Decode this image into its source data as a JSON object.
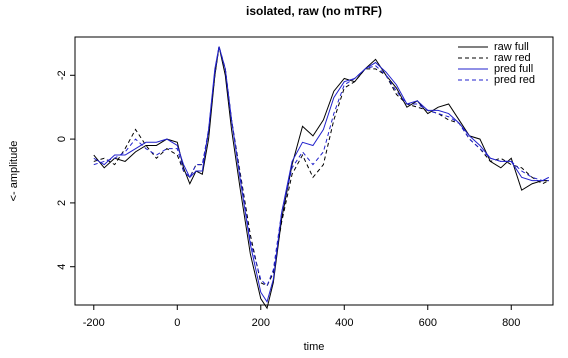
{
  "chart_data": {
    "type": "line",
    "title": "isolated, raw (no mTRF)",
    "x_label": "time",
    "y_label": "<- amplitude",
    "x": [
      -200,
      -175,
      -150,
      -125,
      -100,
      -75,
      -50,
      -25,
      0,
      15,
      30,
      45,
      60,
      75,
      90,
      100,
      115,
      130,
      150,
      175,
      200,
      215,
      230,
      250,
      275,
      300,
      325,
      350,
      375,
      400,
      425,
      450,
      475,
      500,
      525,
      550,
      575,
      600,
      625,
      650,
      675,
      700,
      725,
      750,
      775,
      800,
      825,
      850,
      875,
      890
    ],
    "series": [
      {
        "name": "raw full",
        "color": "#000000",
        "dash": false,
        "values": [
          0.5,
          0.9,
          0.6,
          0.7,
          0.4,
          0.2,
          0.2,
          0.0,
          0.1,
          0.9,
          1.4,
          1.0,
          1.1,
          0.0,
          -2.0,
          -2.9,
          -2.0,
          -0.3,
          1.5,
          3.6,
          5.0,
          5.3,
          4.5,
          2.5,
          0.8,
          -0.4,
          -0.1,
          -0.6,
          -1.5,
          -1.9,
          -1.8,
          -2.2,
          -2.5,
          -2.0,
          -1.6,
          -1.0,
          -1.2,
          -0.8,
          -1.0,
          -1.1,
          -0.6,
          -0.1,
          0.0,
          0.7,
          0.9,
          0.6,
          1.6,
          1.4,
          1.3,
          1.3
        ]
      },
      {
        "name": "raw red",
        "color": "#000000",
        "dash": true,
        "values": [
          0.7,
          0.6,
          0.8,
          0.3,
          -0.3,
          0.2,
          0.6,
          0.3,
          0.5,
          1.0,
          1.2,
          0.8,
          0.8,
          -0.2,
          -2.0,
          -2.9,
          -2.2,
          -0.6,
          1.0,
          3.0,
          4.5,
          4.6,
          4.2,
          2.6,
          1.1,
          0.5,
          1.2,
          0.8,
          -0.6,
          -1.6,
          -1.8,
          -2.2,
          -2.2,
          -2.0,
          -1.4,
          -1.1,
          -1.0,
          -0.9,
          -0.8,
          -0.6,
          -0.5,
          0.0,
          0.3,
          0.7,
          0.6,
          0.8,
          0.9,
          1.2,
          1.4,
          1.3
        ]
      },
      {
        "name": "pred full",
        "color": "#2222cc",
        "dash": false,
        "values": [
          0.6,
          0.8,
          0.5,
          0.5,
          0.3,
          0.1,
          0.1,
          0.0,
          0.2,
          0.8,
          1.2,
          1.0,
          1.0,
          -0.3,
          -2.2,
          -2.9,
          -2.2,
          -0.6,
          1.2,
          3.3,
          4.8,
          5.1,
          4.4,
          2.3,
          0.7,
          0.1,
          0.2,
          -0.3,
          -1.3,
          -1.8,
          -1.9,
          -2.2,
          -2.4,
          -2.1,
          -1.7,
          -1.1,
          -1.2,
          -0.9,
          -0.9,
          -0.8,
          -0.5,
          -0.1,
          0.2,
          0.6,
          0.7,
          0.7,
          1.2,
          1.3,
          1.3,
          1.2
        ]
      },
      {
        "name": "pred red",
        "color": "#2222cc",
        "dash": true,
        "values": [
          0.8,
          0.7,
          0.6,
          0.4,
          0.0,
          0.3,
          0.5,
          0.3,
          0.3,
          1.0,
          1.2,
          0.8,
          0.8,
          -0.3,
          -2.1,
          -2.9,
          -2.2,
          -0.6,
          1.1,
          3.2,
          4.4,
          4.6,
          4.1,
          2.3,
          0.9,
          0.4,
          0.8,
          0.4,
          -0.8,
          -1.7,
          -1.9,
          -2.2,
          -2.3,
          -2.0,
          -1.5,
          -1.1,
          -1.1,
          -0.9,
          -0.8,
          -0.7,
          -0.5,
          0.0,
          0.3,
          0.6,
          0.7,
          0.7,
          1.0,
          1.2,
          1.3,
          1.3
        ]
      }
    ],
    "xlim": [
      -245,
      900
    ],
    "xticks": [
      -200,
      0,
      200,
      400,
      600,
      800
    ],
    "ylim": [
      5.2,
      -3.2
    ],
    "yticks": [
      -2,
      0,
      2,
      4
    ],
    "legend": "top-right",
    "grid": false
  }
}
